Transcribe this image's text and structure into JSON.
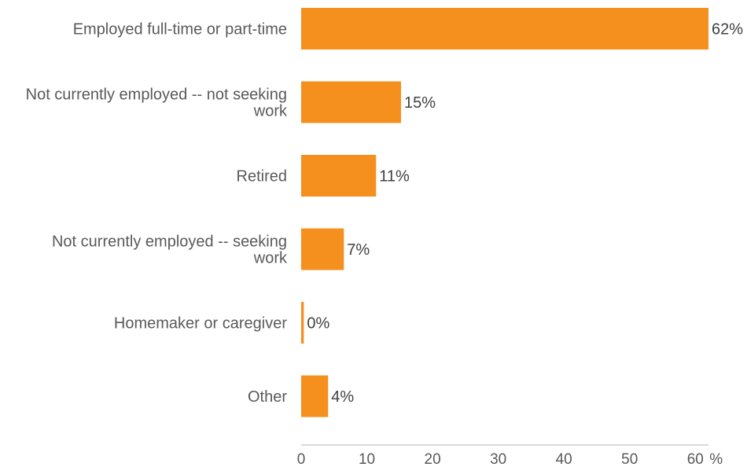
{
  "chart_data": {
    "type": "bar",
    "orientation": "horizontal",
    "categories": [
      [
        "Employed full-time or part-time"
      ],
      [
        "Not currently employed -- not seeking",
        "work"
      ],
      [
        "Retired"
      ],
      [
        "Not currently employed -- seeking",
        "work"
      ],
      [
        "Homemaker or caregiver"
      ],
      [
        "Other"
      ]
    ],
    "values": [
      62,
      15.2,
      11.4,
      6.5,
      0.4,
      4.1
    ],
    "value_labels": [
      "62%",
      "15%",
      "11%",
      "7%",
      "0%",
      "4%"
    ],
    "x_ticks": [
      0,
      10,
      20,
      30,
      40,
      50,
      60
    ],
    "x_unit_label": "%",
    "xlim": [
      0,
      62
    ],
    "bar_color": "#F5901E",
    "axis_color": "#D9D9D9",
    "grid": false
  }
}
